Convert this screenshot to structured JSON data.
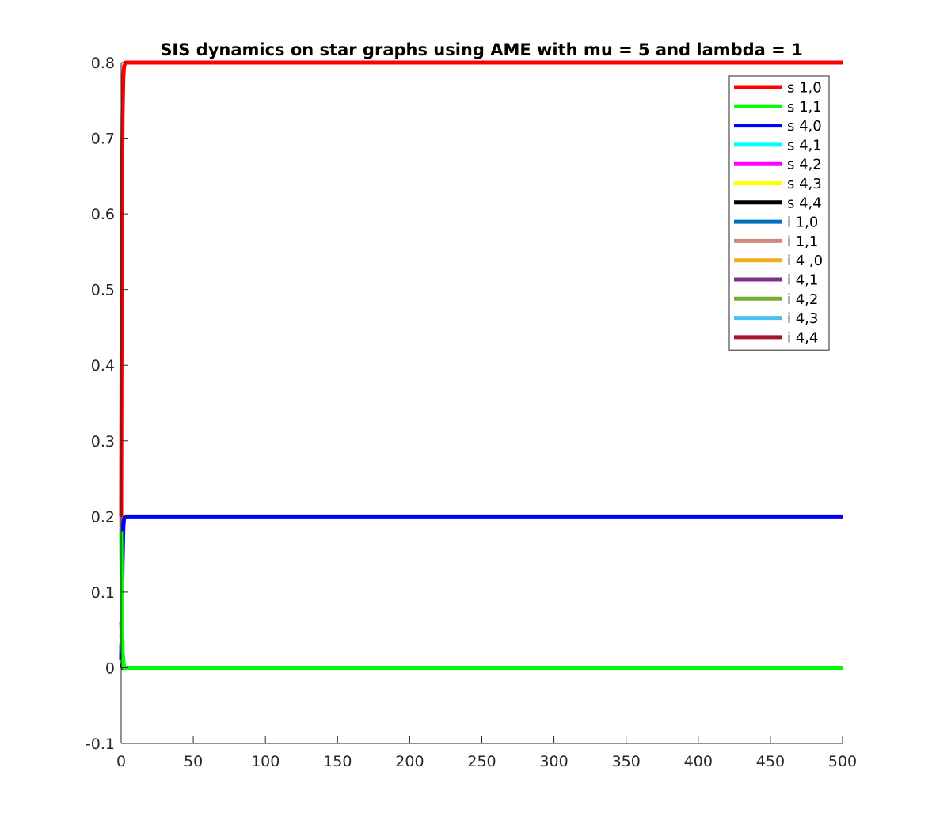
{
  "chart_data": {
    "type": "line",
    "title": "SIS dynamics on star graphs using AME with mu = 5 and lambda = 1",
    "xlabel": "",
    "ylabel": "",
    "xlim": [
      0,
      500
    ],
    "ylim": [
      -0.1,
      0.8
    ],
    "x_ticks": [
      "0",
      "50",
      "100",
      "150",
      "200",
      "250",
      "300",
      "350",
      "400",
      "450",
      "500"
    ],
    "y_ticks": [
      "-0.1",
      "0",
      "0.1",
      "0.2",
      "0.3",
      "0.4",
      "0.5",
      "0.6",
      "0.7",
      "0.8"
    ],
    "grid": false,
    "legend_position": "top-right",
    "series": [
      {
        "name": "s 1,0",
        "color": "#ff0000",
        "x": [
          0,
          0.3,
          0.6,
          1,
          1.5,
          2,
          3,
          500
        ],
        "y": [
          0.2,
          0.45,
          0.62,
          0.73,
          0.78,
          0.795,
          0.8,
          0.8
        ]
      },
      {
        "name": "s 1,1",
        "color": "#00ff00",
        "x": [
          0,
          0.4,
          1,
          2,
          500
        ],
        "y": [
          0.18,
          0.08,
          0.02,
          0,
          0
        ]
      },
      {
        "name": "s 4,0",
        "color": "#0000ff",
        "x": [
          0,
          0.5,
          1,
          1.5,
          2,
          3,
          500
        ],
        "y": [
          0.01,
          0.06,
          0.14,
          0.185,
          0.197,
          0.2,
          0.2
        ]
      },
      {
        "name": "s 4,1",
        "color": "#00ffff",
        "x": [
          0,
          0.5,
          1,
          2,
          500
        ],
        "y": [
          0.04,
          0.05,
          0.02,
          0,
          0
        ]
      },
      {
        "name": "s 4,2",
        "color": "#ff00ff",
        "x": [
          0,
          0.5,
          1,
          2,
          500
        ],
        "y": [
          0.06,
          0.04,
          0.01,
          0,
          0
        ]
      },
      {
        "name": "s 4,3",
        "color": "#ffff00",
        "x": [
          0,
          0.5,
          1,
          2,
          500
        ],
        "y": [
          0.05,
          0.02,
          0.005,
          0,
          0
        ]
      },
      {
        "name": "s 4,4",
        "color": "#000000",
        "x": [
          0,
          0.5,
          1,
          2,
          500
        ],
        "y": [
          0.02,
          0.005,
          0,
          0,
          0
        ]
      },
      {
        "name": "i 1,0",
        "color": "#0072bd",
        "x": [
          0,
          0.5,
          1,
          2,
          500
        ],
        "y": [
          0.03,
          0.02,
          0.005,
          0,
          0
        ]
      },
      {
        "name": "i 1,1",
        "color": "#d0877c",
        "x": [
          0,
          0.4,
          1,
          2,
          500
        ],
        "y": [
          0.2,
          0.1,
          0.02,
          0,
          0
        ]
      },
      {
        "name": "i 4 ,0",
        "color": "#edb120",
        "x": [
          0,
          0.5,
          1,
          2,
          500
        ],
        "y": [
          0.03,
          0.015,
          0.003,
          0,
          0
        ]
      },
      {
        "name": "i 4,1",
        "color": "#7e2f8e",
        "x": [
          0,
          0.5,
          1,
          2,
          500
        ],
        "y": [
          0.02,
          0.01,
          0.002,
          0,
          0
        ]
      },
      {
        "name": "i 4,2",
        "color": "#77ac30",
        "x": [
          0,
          0.5,
          1,
          2,
          500
        ],
        "y": [
          0.025,
          0.01,
          0.002,
          0,
          0
        ]
      },
      {
        "name": "i 4,3",
        "color": "#4dbeee",
        "x": [
          0,
          0.5,
          1,
          2,
          500
        ],
        "y": [
          0.03,
          0.012,
          0.002,
          0,
          0
        ]
      },
      {
        "name": "i 4,4",
        "color": "#a2142f",
        "x": [
          0,
          0.5,
          1,
          2,
          500
        ],
        "y": [
          0.015,
          0.005,
          0.001,
          0,
          0
        ]
      }
    ]
  }
}
